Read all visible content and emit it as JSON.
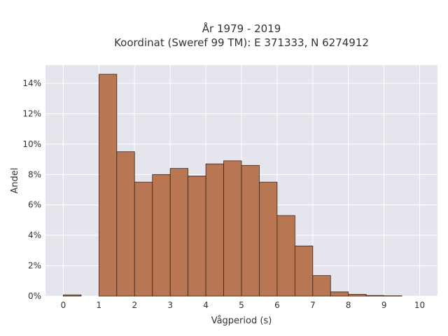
{
  "chart_data": {
    "type": "bar",
    "title": "År 1979 - 2019",
    "subtitle": "Koordinat (Sweref 99 TM): E 371333, N 6274912",
    "xlabel": "Vågperiod (s)",
    "ylabel": "Andel",
    "xlim": [
      -0.5,
      10.5
    ],
    "ylim": [
      0,
      15.2
    ],
    "x_ticks": [
      0,
      1,
      2,
      3,
      4,
      5,
      6,
      7,
      8,
      9,
      10
    ],
    "x_tick_labels": [
      "0",
      "1",
      "2",
      "3",
      "4",
      "5",
      "6",
      "7",
      "8",
      "9",
      "10"
    ],
    "y_ticks": [
      0,
      2,
      4,
      6,
      8,
      10,
      12,
      14
    ],
    "y_tick_labels": [
      "0%",
      "2%",
      "4%",
      "6%",
      "8%",
      "10%",
      "12%",
      "14%"
    ],
    "bin_width": 0.5,
    "bin_starts": [
      0,
      0.5,
      1,
      1.5,
      2,
      2.5,
      3,
      3.5,
      4,
      4.5,
      5,
      5.5,
      6,
      6.5,
      7,
      7.5,
      8,
      8.5,
      9,
      9.5
    ],
    "values": [
      0.08,
      0,
      14.6,
      9.5,
      7.5,
      8.0,
      8.4,
      7.9,
      8.7,
      8.9,
      8.6,
      7.5,
      5.3,
      3.3,
      1.35,
      0.28,
      0.12,
      0.04,
      0.02,
      0
    ],
    "grid": true,
    "colors": {
      "bar_fill": "#b87752",
      "bar_edge": "#3a2418",
      "plot_bg": "#e5e5ee",
      "grid": "#ffffff"
    }
  }
}
